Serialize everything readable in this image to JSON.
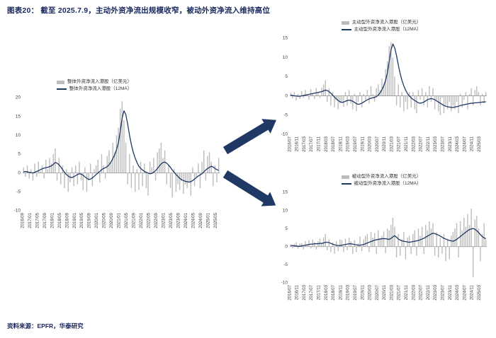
{
  "page": {
    "title": "图表20：  截至 2025.7.9，主动外资净流出规模收窄，被动外资净流入维持高位",
    "source": "资料来源：EPFR，华泰研究"
  },
  "colors": {
    "bar": "#bdbdbd",
    "line": "#1f3864",
    "accent": "#1f3864",
    "title": "#16265c",
    "axis_text": "#404040",
    "zero_line": "#8a8a8a"
  },
  "chart_data": [
    {
      "type": "bar+line",
      "name": "overall-foreign-flows-hk",
      "legend_bar": "整体外资净流入港股（亿美元）",
      "legend_line": "整体外资净流入港股（12MA）",
      "legend_position": "top",
      "ylim": [
        -10,
        20
      ],
      "yticks": [
        20,
        15,
        10,
        5,
        0,
        -5,
        -10
      ],
      "grid": false,
      "x_tick_labels": [
        "2016/09",
        "2017/01",
        "2017/05",
        "2017/09",
        "2018/01",
        "2018/05",
        "2018/09",
        "2019/01",
        "2019/05",
        "2019/09",
        "2020/01",
        "2020/05",
        "2020/09",
        "2021/01",
        "2021/05",
        "2021/09",
        "2022/01",
        "2022/05",
        "2022/09",
        "2023/01",
        "2023/05",
        "2023/09",
        "2024/01",
        "2024/05",
        "2024/09",
        "2025/01",
        "2025/05"
      ],
      "bars": [
        1.5,
        -1.0,
        2.0,
        -1.5,
        1.0,
        -2.0,
        2.5,
        -1.0,
        3.0,
        0.5,
        2.0,
        -1.5,
        3.5,
        1.0,
        4.0,
        2.5,
        5.0,
        6.5,
        -2.0,
        4.0,
        -3.0,
        2.0,
        -4.0,
        1.0,
        -5.0,
        -2.5,
        1.5,
        -3.5,
        2.0,
        -3.0,
        3.0,
        -2.0,
        -4.5,
        1.5,
        -5.0,
        -2.0,
        2.5,
        -3.5,
        1.0,
        2.0,
        3.5,
        -2.5,
        5.0,
        2.0,
        -1.5,
        4.5,
        6.0,
        3.0,
        8.0,
        5.5,
        10.0,
        12.0,
        17.0,
        19.0,
        14.0,
        8.0,
        -3.0,
        5.0,
        -4.0,
        2.0,
        -5.0,
        1.0,
        -4.5,
        3.0,
        -3.5,
        2.5,
        -4.0,
        -6.0,
        3.0,
        1.5,
        4.0,
        -2.0,
        5.5,
        6.5,
        8.0,
        4.0,
        6.0,
        -3.0,
        2.0,
        -4.0,
        -6.5,
        1.0,
        -5.0,
        -3.0,
        -4.5,
        -2.0,
        -5.5,
        -3.0,
        -4.0,
        -2.5,
        -6.0,
        1.5,
        -3.5,
        -1.0,
        2.5,
        -4.0,
        3.0,
        6.0,
        -2.0,
        4.5,
        5.5,
        3.0,
        -3.5,
        2.0,
        -2.5,
        4.0
      ],
      "ma": [
        0.3,
        0.4,
        0.3,
        0.2,
        0.1,
        0.0,
        0.2,
        0.4,
        0.6,
        0.9,
        1.1,
        1.3,
        1.4,
        1.5,
        1.7,
        1.9,
        2.3,
        2.8,
        2.6,
        2.2,
        1.6,
        0.9,
        0.2,
        -0.4,
        -0.8,
        -1.1,
        -1.2,
        -1.0,
        -0.7,
        -0.4,
        -0.2,
        -0.3,
        -0.6,
        -1.0,
        -1.4,
        -1.7,
        -1.6,
        -1.3,
        -0.9,
        -0.4,
        0.0,
        0.4,
        0.9,
        1.2,
        1.4,
        1.7,
        2.2,
        2.9,
        3.8,
        4.8,
        6.2,
        8.0,
        11.0,
        14.5,
        16.5,
        15.5,
        13.0,
        10.0,
        7.5,
        5.5,
        4.0,
        2.8,
        1.8,
        1.2,
        0.8,
        0.4,
        0.2,
        0.0,
        -0.2,
        -0.1,
        0.2,
        0.6,
        1.2,
        1.8,
        2.4,
        2.8,
        2.9,
        2.6,
        2.1,
        1.5,
        0.8,
        0.2,
        -0.4,
        -0.9,
        -1.4,
        -1.8,
        -2.0,
        -2.2,
        -2.3,
        -2.4,
        -2.3,
        -2.0,
        -1.6,
        -1.2,
        -0.8,
        -0.5,
        -0.2,
        0.3,
        0.8,
        1.2,
        1.5,
        1.8,
        1.6,
        1.2,
        0.9,
        0.7
      ]
    },
    {
      "type": "bar+line",
      "name": "active-foreign-flows-hk",
      "legend_bar": "主动型外资净流入港股（亿美元）",
      "legend_line": "主动型外资净流入港股（12MA）",
      "legend_position": "top",
      "ylim": [
        -10,
        15
      ],
      "yticks": [
        15,
        10,
        5,
        0,
        -5,
        -10
      ],
      "grid": false,
      "x_tick_labels": [
        "2016/07",
        "2016/11",
        "2017/03",
        "2017/07",
        "2017/11",
        "2018/03",
        "2018/07",
        "2018/11",
        "2019/03",
        "2019/07",
        "2019/11",
        "2020/03",
        "2020/07",
        "2020/11",
        "2021/03",
        "2021/07",
        "2021/11",
        "2022/03",
        "2022/07",
        "2022/11",
        "2023/03",
        "2023/07",
        "2023/11",
        "2024/03",
        "2024/07",
        "2024/11",
        "2025/03"
      ],
      "bars": [
        0.8,
        -0.6,
        1.0,
        -1.2,
        0.5,
        -0.8,
        1.2,
        -0.5,
        1.5,
        0.3,
        -1.0,
        1.8,
        0.5,
        -0.8,
        2.0,
        1.0,
        -0.5,
        2.2,
        3.0,
        4.0,
        -1.5,
        2.0,
        -2.5,
        1.0,
        -3.0,
        -1.0,
        -3.5,
        -2.0,
        -1.5,
        -2.8,
        1.0,
        -2.5,
        1.5,
        -2.0,
        -3.5,
        0.5,
        -4.0,
        -1.5,
        1.0,
        -3.0,
        0.5,
        -1.0,
        1.5,
        -2.0,
        2.5,
        0.5,
        -1.5,
        2.0,
        3.0,
        1.5,
        4.5,
        3.0,
        7.0,
        9.0,
        13.0,
        14.0,
        10.0,
        5.0,
        -2.5,
        3.0,
        -3.0,
        1.0,
        -4.0,
        -1.5,
        -3.5,
        1.0,
        -3.0,
        1.0,
        -3.5,
        -4.5,
        1.5,
        -1.0,
        2.0,
        -2.5,
        1.0,
        -3.0,
        2.5,
        -1.5,
        2.0,
        -3.5,
        -1.0,
        -4.0,
        -5.0,
        -0.5,
        -4.5,
        -2.5,
        -3.5,
        -1.5,
        -4.0,
        -2.5,
        -3.5,
        -1.5,
        -4.5,
        0.5,
        -3.0,
        -1.0,
        1.0,
        -3.5,
        0.5,
        2.0,
        -2.5,
        1.5,
        2.5,
        1.0,
        -2.5,
        0.5,
        -2.0,
        1.0
      ],
      "ma": [
        0.2,
        0.1,
        0.0,
        0.0,
        -0.1,
        -0.1,
        0.0,
        0.1,
        0.2,
        0.3,
        0.4,
        0.5,
        0.6,
        0.7,
        0.8,
        0.9,
        1.0,
        1.1,
        1.3,
        1.5,
        1.4,
        1.1,
        0.7,
        0.2,
        -0.3,
        -0.8,
        -1.2,
        -1.5,
        -1.7,
        -1.6,
        -1.4,
        -1.2,
        -1.1,
        -1.2,
        -1.4,
        -1.7,
        -2.0,
        -2.2,
        -2.1,
        -1.9,
        -1.6,
        -1.3,
        -1.0,
        -0.8,
        -0.6,
        -0.5,
        -0.4,
        -0.2,
        0.2,
        0.8,
        1.6,
        2.6,
        4.0,
        6.0,
        9.0,
        12.0,
        13.5,
        12.5,
        10.5,
        8.0,
        5.8,
        4.0,
        2.6,
        1.5,
        0.6,
        0.0,
        -0.5,
        -0.9,
        -1.2,
        -1.5,
        -1.8,
        -1.9,
        -1.8,
        -1.6,
        -1.3,
        -1.0,
        -0.8,
        -0.7,
        -0.8,
        -1.0,
        -1.3,
        -1.6,
        -1.9,
        -2.2,
        -2.5,
        -2.7,
        -2.8,
        -2.9,
        -3.0,
        -3.0,
        -2.9,
        -2.8,
        -2.7,
        -2.5,
        -2.4,
        -2.3,
        -2.2,
        -2.1,
        -2.0,
        -1.9,
        -1.9,
        -1.8,
        -1.8,
        -1.7,
        -1.7,
        -1.6,
        -1.6,
        -1.5
      ]
    },
    {
      "type": "bar+line",
      "name": "passive-foreign-flows-hk",
      "legend_bar": "被动型外资净流入港股（亿美元）",
      "legend_line": "被动型外资净流入港股（12MA）",
      "legend_position": "top",
      "ylim": [
        -10,
        15
      ],
      "yticks": [
        15,
        10,
        5,
        0,
        -5,
        -10
      ],
      "grid": false,
      "x_tick_labels": [
        "2016/07",
        "2016/11",
        "2017/03",
        "2017/07",
        "2017/11",
        "2018/03",
        "2018/07",
        "2018/11",
        "2019/03",
        "2019/07",
        "2019/11",
        "2020/03",
        "2020/07",
        "2020/11",
        "2021/03",
        "2021/07",
        "2021/11",
        "2022/03",
        "2022/07",
        "2022/11",
        "2023/03",
        "2023/07",
        "2023/11",
        "2024/03",
        "2024/07",
        "2024/11",
        "2025/03"
      ],
      "bars": [
        0.6,
        -0.4,
        0.8,
        1.2,
        -0.6,
        0.9,
        1.0,
        -0.8,
        1.5,
        0.6,
        1.8,
        -0.5,
        2.0,
        1.2,
        -0.8,
        1.5,
        2.2,
        1.0,
        2.5,
        3.5,
        -1.0,
        2.0,
        -1.5,
        1.2,
        -2.0,
        1.5,
        -1.2,
        2.0,
        1.8,
        -1.5,
        2.2,
        -1.0,
        2.5,
        1.5,
        -2.0,
        1.8,
        -1.5,
        1.0,
        2.8,
        -1.2,
        2.0,
        3.0,
        3.5,
        -1.5,
        4.0,
        2.5,
        3.8,
        -2.0,
        4.5,
        2.0,
        3.0,
        4.2,
        -1.8,
        5.0,
        4.5,
        6.0,
        8.0,
        5.5,
        -3.0,
        3.5,
        -2.5,
        2.0,
        4.0,
        -3.5,
        2.5,
        3.0,
        -2.0,
        3.5,
        4.5,
        -2.5,
        5.0,
        3.0,
        5.5,
        -2.0,
        6.0,
        4.5,
        7.0,
        5.0,
        6.5,
        -2.5,
        4.0,
        -3.0,
        2.5,
        -2.0,
        3.5,
        -4.0,
        2.0,
        -3.5,
        3.0,
        4.0,
        5.0,
        6.5,
        -3.0,
        7.0,
        4.5,
        8.0,
        5.5,
        9.0,
        6.0,
        10.5,
        -8.5,
        7.5,
        8.5,
        5.0,
        -4.0,
        3.5,
        6.5,
        2.0
      ],
      "ma": [
        0.3,
        0.3,
        0.2,
        0.2,
        0.1,
        0.1,
        0.2,
        0.3,
        0.4,
        0.5,
        0.6,
        0.7,
        0.7,
        0.8,
        0.8,
        0.8,
        0.9,
        0.9,
        1.0,
        1.2,
        1.2,
        1.1,
        0.9,
        0.7,
        0.5,
        0.4,
        0.3,
        0.3,
        0.4,
        0.5,
        0.6,
        0.7,
        0.8,
        0.8,
        0.7,
        0.6,
        0.5,
        0.4,
        0.4,
        0.5,
        0.6,
        0.8,
        1.0,
        1.2,
        1.4,
        1.6,
        1.8,
        1.9,
        2.0,
        2.1,
        2.2,
        2.2,
        2.2,
        2.1,
        2.0,
        2.3,
        2.7,
        3.0,
        2.6,
        2.1,
        1.8,
        1.6,
        1.5,
        1.4,
        1.3,
        1.2,
        1.3,
        1.4,
        1.5,
        1.6,
        1.7,
        1.9,
        2.1,
        2.3,
        2.6,
        2.9,
        3.2,
        3.5,
        3.7,
        3.6,
        3.4,
        3.2,
        2.9,
        2.6,
        2.3,
        2.1,
        1.9,
        1.7,
        1.6,
        1.5,
        1.7,
        2.0,
        2.4,
        2.8,
        3.2,
        3.6,
        4.0,
        4.4,
        4.7,
        4.9,
        5.0,
        4.8,
        4.4,
        3.9,
        3.3,
        2.8,
        2.4,
        2.2
      ]
    }
  ]
}
